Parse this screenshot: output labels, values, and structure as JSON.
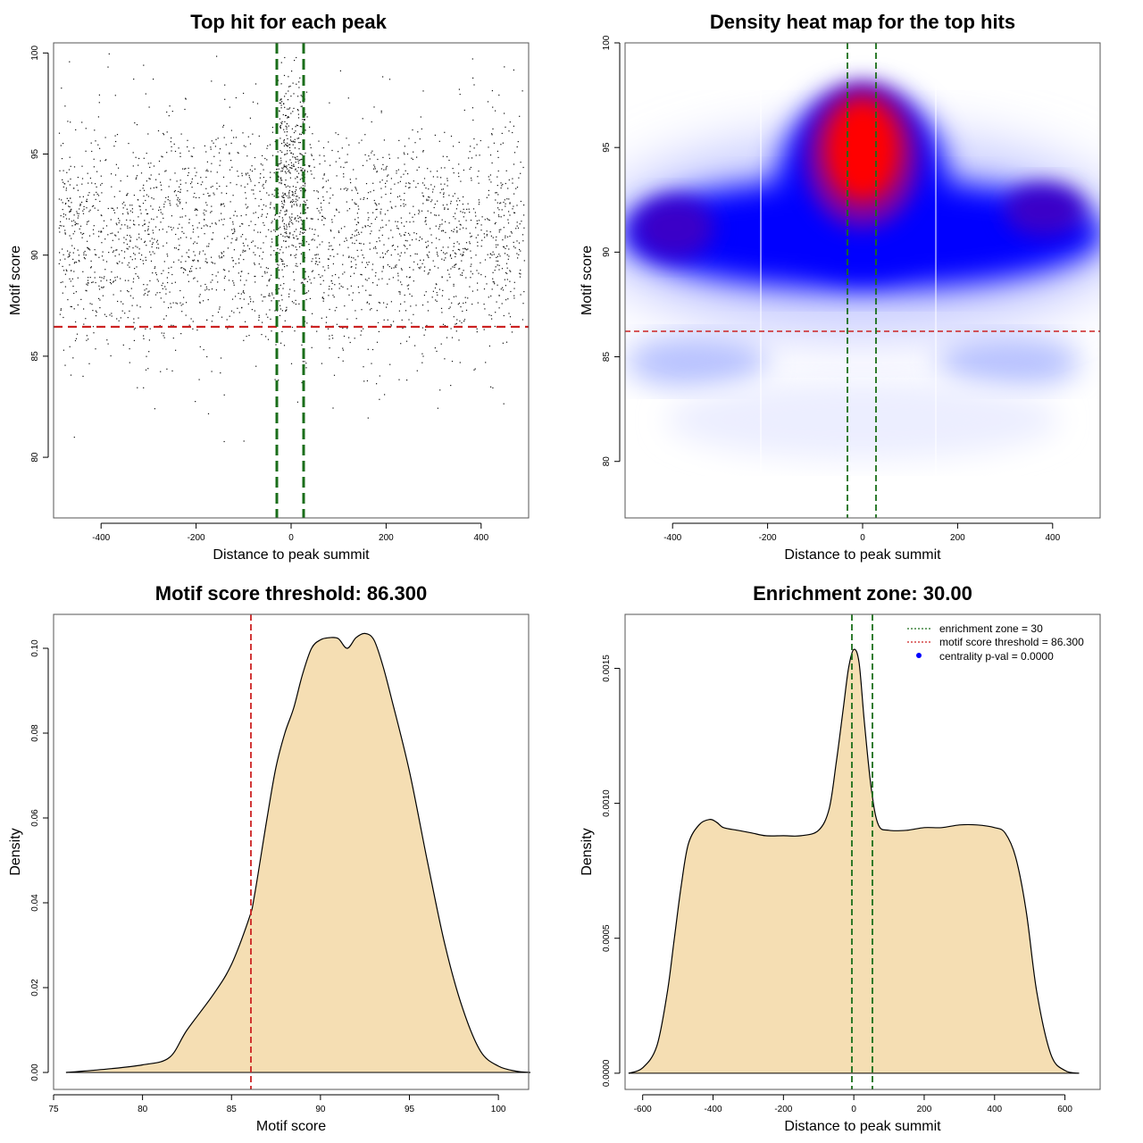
{
  "panels": {
    "scatter": {
      "title": "Top hit for each peak",
      "xlabel": "Distance to peak summit",
      "ylabel": "Motif score"
    },
    "heatmap": {
      "title": "Density heat map for the top hits",
      "xlabel": "Distance to peak summit",
      "ylabel": "Motif score"
    },
    "score_density": {
      "title": "Motif score threshold: 86.300",
      "xlabel": "Motif score",
      "ylabel": "Density"
    },
    "dist_density": {
      "title": "Enrichment zone: 30.00",
      "xlabel": "Distance to peak summit",
      "ylabel": "Density"
    }
  },
  "legend": {
    "zone": "enrichment zone = 30",
    "threshold": "motif score threshold = 86.300",
    "pval": "centrality p-val = 0.0000"
  },
  "colors": {
    "threshold_line": "#cc2222",
    "zone_line": "#1a6e1a",
    "density_fill": "#f5deb3",
    "points": "#111111",
    "heat_low": "#ffffff",
    "heat_mid": "#0000ff",
    "heat_high": "#ff0000",
    "pval_marker": "#0000ff"
  },
  "chart_data": [
    {
      "id": "scatter",
      "type": "scatter",
      "title": "Top hit for each peak",
      "xlabel": "Distance to peak summit",
      "ylabel": "Motif score",
      "xlim": [
        -500,
        500
      ],
      "ylim": [
        77,
        100.5
      ],
      "xticks": [
        -400,
        -200,
        0,
        200,
        400
      ],
      "yticks": [
        80,
        85,
        90,
        95,
        100
      ],
      "n_points": 3000,
      "score_mean": 91,
      "score_sd": 3,
      "central_enriched_range": [
        -30,
        30
      ],
      "threshold_y": 86.3,
      "zone_x": [
        -30,
        30
      ]
    },
    {
      "id": "heatmap",
      "type": "heatmap",
      "title": "Density heat map for the top hits",
      "xlabel": "Distance to peak summit",
      "ylabel": "Motif score",
      "xlim": [
        -500,
        500
      ],
      "ylim": [
        77.3,
        100
      ],
      "xticks": [
        -400,
        -200,
        0,
        200,
        400
      ],
      "yticks": [
        80,
        85,
        90,
        95,
        100
      ],
      "hotspot": {
        "x": 0,
        "y": 94.8
      },
      "grid_x": [
        -210,
        155
      ],
      "threshold_y": 86.3,
      "zone_x": [
        -30,
        30
      ]
    },
    {
      "id": "score_density",
      "type": "area",
      "title": "Motif score threshold: 86.300",
      "xlabel": "Motif score",
      "ylabel": "Density",
      "xlim": [
        75,
        101.7
      ],
      "ylim": [
        -0.004,
        0.108
      ],
      "xticks": [
        75,
        80,
        85,
        90,
        95,
        100
      ],
      "yticks": [
        0.0,
        0.02,
        0.04,
        0.06,
        0.08,
        0.1
      ],
      "ytick_labels": [
        "0.00",
        "0.02",
        "0.04",
        "0.06",
        "0.08",
        "0.10"
      ],
      "x": [
        75.7,
        78,
        80,
        81.5,
        82.5,
        84,
        85,
        86,
        86.3,
        87,
        87.5,
        88,
        88.5,
        89,
        89.5,
        90,
        90.5,
        91,
        91.5,
        92,
        92.5,
        93,
        93.5,
        94,
        95,
        96,
        97,
        98,
        99,
        100,
        101,
        101.8
      ],
      "y": [
        0,
        0.0008,
        0.0018,
        0.0035,
        0.01,
        0.0185,
        0.0255,
        0.0365,
        0.042,
        0.06,
        0.072,
        0.08,
        0.086,
        0.094,
        0.1,
        0.102,
        0.1025,
        0.1023,
        0.1,
        0.1025,
        0.1035,
        0.102,
        0.096,
        0.088,
        0.071,
        0.05,
        0.03,
        0.015,
        0.005,
        0.0015,
        0.0003,
        0
      ],
      "threshold_x": 86.3
    },
    {
      "id": "dist_density",
      "type": "area",
      "title": "Enrichment zone: 30.00",
      "xlabel": "Distance to peak summit",
      "ylabel": "Density",
      "xlim": [
        -650,
        700
      ],
      "ylim": [
        -6e-05,
        0.0017
      ],
      "xticks": [
        -600,
        -400,
        -200,
        0,
        200,
        400,
        600
      ],
      "yticks": [
        0.0,
        0.0005,
        0.001,
        0.0015
      ],
      "ytick_labels": [
        "0.0000",
        "0.0005",
        "0.0010",
        "0.0015"
      ],
      "x": [
        -640,
        -600,
        -560,
        -530,
        -510,
        -490,
        -470,
        -440,
        -410,
        -390,
        -370,
        -330,
        -290,
        -250,
        -200,
        -150,
        -100,
        -70,
        -50,
        -30,
        -15,
        0,
        15,
        30,
        50,
        70,
        100,
        150,
        200,
        250,
        300,
        350,
        400,
        430,
        460,
        490,
        520,
        560,
        600,
        640
      ],
      "y": [
        0,
        2e-05,
        0.0001,
        0.0003,
        0.0005,
        0.0007,
        0.00085,
        0.00092,
        0.00094,
        0.00093,
        0.00091,
        0.0009,
        0.00089,
        0.00088,
        0.00088,
        0.00088,
        0.0009,
        0.00098,
        0.00115,
        0.00135,
        0.0015,
        0.00157,
        0.00152,
        0.0013,
        0.00105,
        0.00092,
        0.0009,
        0.0009,
        0.00091,
        0.00091,
        0.00092,
        0.00092,
        0.00091,
        0.00089,
        0.0008,
        0.0006,
        0.0003,
        7e-05,
        1e-05,
        0
      ],
      "zone_x": [
        -30,
        30
      ],
      "legend": [
        "enrichment zone = 30",
        "motif score threshold = 86.300",
        "centrality p-val = 0.0000"
      ]
    }
  ]
}
